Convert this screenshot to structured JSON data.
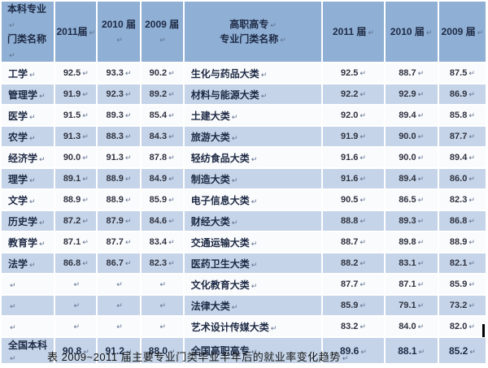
{
  "page": {
    "caption": "表  2009~2011 届主要专业门类毕业半年后的就业率变化趋势",
    "return_mark": "↵"
  },
  "table": {
    "header": {
      "bk_title_line1": "本科专业",
      "bk_title_line2": "门类名称",
      "bk_years": [
        "2011届",
        "2010 届",
        "2009 届"
      ],
      "gz_title_line1": "高职高专",
      "gz_title_line2": "专业门类名称",
      "gz_years": [
        "2011 届",
        "2010 届",
        "2009 届"
      ]
    },
    "rows": [
      {
        "bk_name": "工学",
        "bk": [
          "92.5",
          "93.3",
          "90.2"
        ],
        "gz_name": "生化与药品大类",
        "gz": [
          "92.5",
          "88.7",
          "87.5"
        ]
      },
      {
        "bk_name": "管理学",
        "bk": [
          "91.9",
          "92.3",
          "89.2"
        ],
        "gz_name": "材料与能源大类",
        "gz": [
          "92.2",
          "92.9",
          "86.9"
        ]
      },
      {
        "bk_name": "医学",
        "bk": [
          "91.5",
          "89.3",
          "85.4"
        ],
        "gz_name": "土建大类",
        "gz": [
          "92.0",
          "89.4",
          "85.8"
        ]
      },
      {
        "bk_name": "农学",
        "bk": [
          "91.3",
          "88.3",
          "84.3"
        ],
        "gz_name": "旅游大类",
        "gz": [
          "91.9",
          "90.0",
          "87.7"
        ]
      },
      {
        "bk_name": "经济学",
        "bk": [
          "90.0",
          "91.3",
          "87.8"
        ],
        "gz_name": "轻纺食品大类",
        "gz": [
          "91.6",
          "90.0",
          "89.4"
        ]
      },
      {
        "bk_name": "理学",
        "bk": [
          "89.1",
          "88.9",
          "84.9"
        ],
        "gz_name": "制造大类",
        "gz": [
          "91.6",
          "89.4",
          "86.0"
        ]
      },
      {
        "bk_name": "文学",
        "bk": [
          "88.9",
          "88.9",
          "85.9"
        ],
        "gz_name": "电子信息大类",
        "gz": [
          "90.5",
          "86.5",
          "82.3"
        ]
      },
      {
        "bk_name": "历史学",
        "bk": [
          "87.2",
          "87.9",
          "84.6"
        ],
        "gz_name": "财经大类",
        "gz": [
          "88.8",
          "89.3",
          "86.8"
        ]
      },
      {
        "bk_name": "教育学",
        "bk": [
          "87.1",
          "87.7",
          "83.4"
        ],
        "gz_name": "交通运输大类",
        "gz": [
          "88.7",
          "89.8",
          "88.9"
        ]
      },
      {
        "bk_name": "法学",
        "bk": [
          "86.8",
          "86.7",
          "82.3"
        ],
        "gz_name": "医药卫生大类",
        "gz": [
          "88.2",
          "83.1",
          "82.1"
        ]
      },
      {
        "bk_name": "",
        "bk": [
          "",
          "",
          ""
        ],
        "gz_name": "文化教育大类",
        "gz": [
          "87.7",
          "87.1",
          "85.9"
        ]
      },
      {
        "bk_name": "",
        "bk": [
          "",
          "",
          ""
        ],
        "gz_name": "法律大类",
        "gz": [
          "85.9",
          "79.1",
          "73.2"
        ]
      },
      {
        "bk_name": "",
        "bk": [
          "",
          "",
          ""
        ],
        "gz_name": "艺术设计传媒大类",
        "gz": [
          "83.2",
          "84.0",
          "82.0"
        ]
      },
      {
        "bk_name": "全国本科",
        "bk": [
          "90.8",
          "91.2",
          "88.0"
        ],
        "gz_name": "全国高职高专",
        "gz": [
          "89.6",
          "88.1",
          "85.2"
        ],
        "is_total": true
      }
    ]
  },
  "colors": {
    "header_bg": "#8fafd4",
    "row_dark": "#c5d4e8",
    "row_light": "#fafbfd",
    "text_dark": "#1e2a45",
    "value_text": "#2f3340",
    "mark_color": "#5f718f"
  }
}
